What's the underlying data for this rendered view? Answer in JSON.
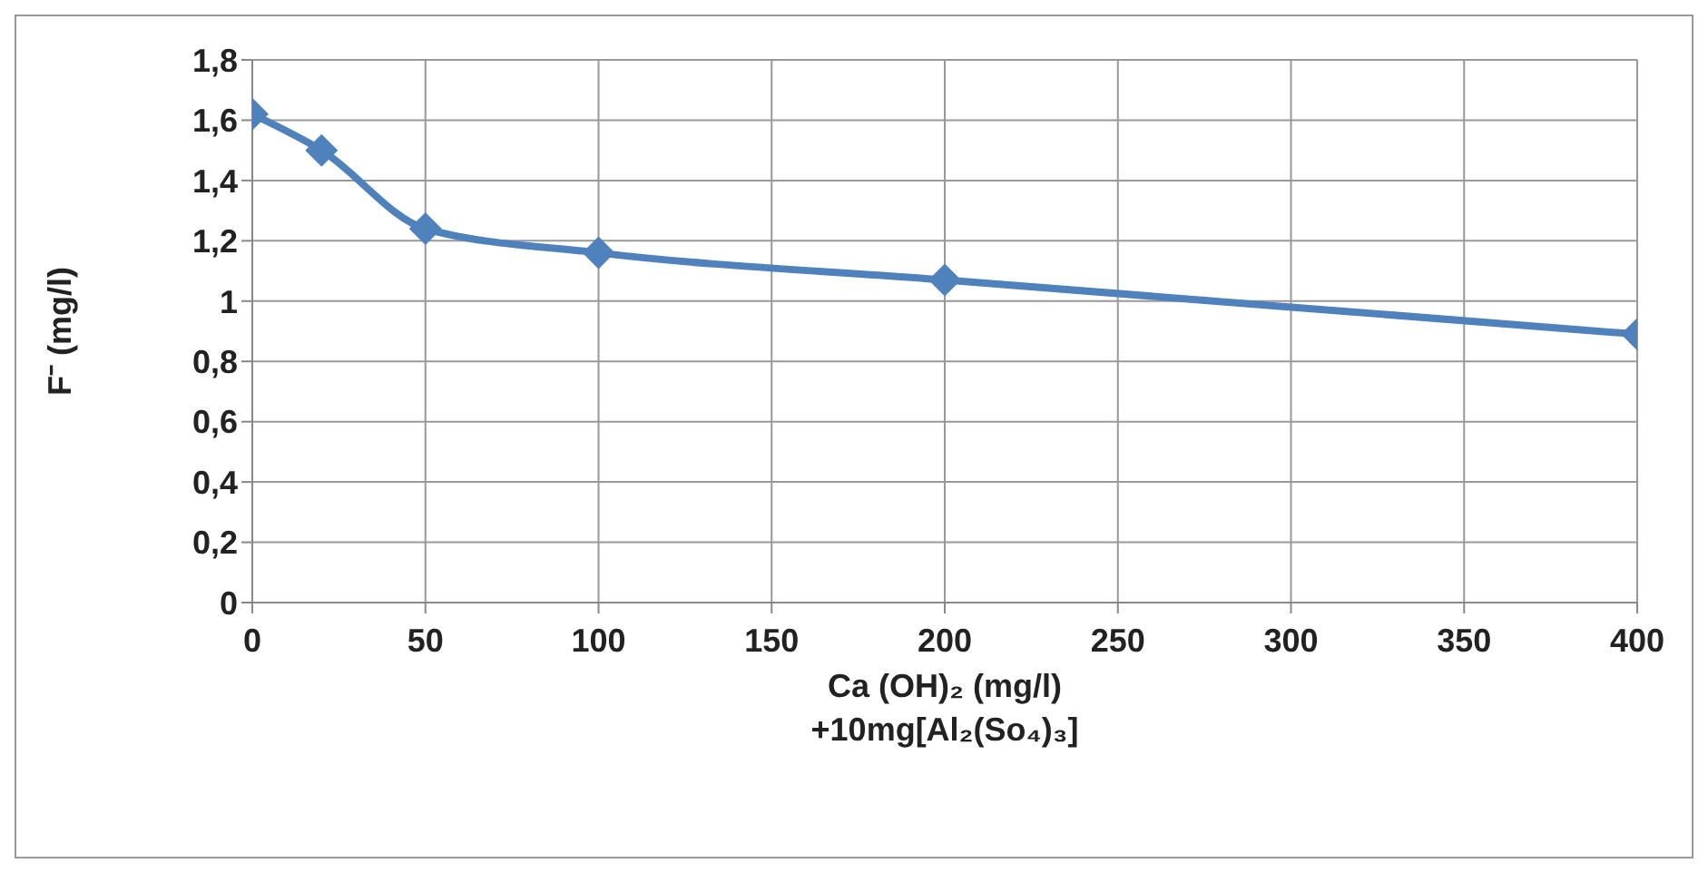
{
  "chart_data": {
    "type": "line",
    "xlabel": "Ca (OH)₂  (mg/l)\n+10mg[Al₂(So₄)₃]",
    "ylabel": "F⁻ (mg/l)",
    "x": [
      0,
      20,
      50,
      100,
      200,
      400
    ],
    "series": [
      {
        "color": "#4f81bd",
        "values": [
          1.62,
          1.5,
          1.24,
          1.16,
          1.07,
          0.89
        ]
      }
    ],
    "xlim": [
      0,
      400
    ],
    "xticks": [
      0,
      50,
      100,
      150,
      200,
      250,
      300,
      350,
      400
    ],
    "ylim": [
      0,
      1.8
    ],
    "yticks": [
      0,
      {
        "value": 0.2,
        "label": "0,2"
      },
      {
        "value": 0.4,
        "label": "0,4"
      },
      {
        "value": 0.6,
        "label": "0,6"
      },
      {
        "value": 0.8,
        "label": "0,8"
      },
      1,
      {
        "value": 1.2,
        "label": "1,2"
      },
      {
        "value": 1.4,
        "label": "1,4"
      },
      {
        "value": 1.6,
        "label": "1,6"
      },
      {
        "value": 1.8,
        "label": "1,8"
      }
    ],
    "grid": true,
    "marker": "diamond",
    "line_style": "solid",
    "legend": false
  }
}
